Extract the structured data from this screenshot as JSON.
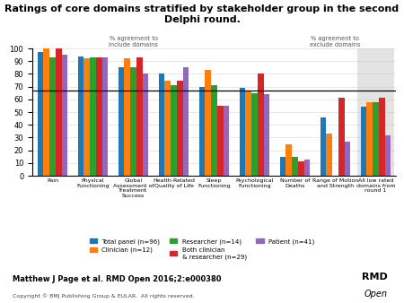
{
  "chart_data": {
    "type": "bar",
    "title": "Ratings of core domains stratified by stakeholder group in the second Delphi round.",
    "categories": [
      "Pain",
      "Physical\nFunctioning",
      "Global\nAssessment of\nTreatment\nSuccess",
      "Health-Related\nQuality of Life",
      "Sleep\nFunctioning",
      "Psychological\nFunctioning",
      "Number of\nDeaths",
      "Range of Motion\nand Strength",
      "All low rated\ndomains from\nround 1"
    ],
    "series": [
      {
        "name": "Total panel (n=96)",
        "values": [
          97,
          94,
          85,
          80,
          70,
          69,
          15,
          46,
          54
        ]
      },
      {
        "name": "Clinician (n=12)",
        "values": [
          100,
          92,
          92,
          75,
          83,
          67,
          25,
          33,
          58
        ]
      },
      {
        "name": "Researcher (n=14)",
        "values": [
          93,
          93,
          85,
          71,
          71,
          65,
          15,
          null,
          58
        ]
      },
      {
        "name": "Both clinician\n& researcher (n=29)",
        "values": [
          100,
          93,
          93,
          75,
          55,
          80,
          11,
          61,
          61
        ]
      },
      {
        "name": "Patient (n=41)",
        "values": [
          95,
          93,
          80,
          85,
          55,
          64,
          13,
          27,
          32
        ]
      }
    ],
    "ylim": [
      0,
      100
    ],
    "yticks": [
      0,
      10,
      20,
      30,
      40,
      50,
      60,
      70,
      80,
      90,
      100
    ],
    "grid": true,
    "legend": "lower center",
    "reference_line": 67,
    "shaded_category": "All low rated\ndomains from\nround 1",
    "annotations": [
      {
        "text": "% agreement to\ninclude domains",
        "x": 2
      },
      {
        "text": "% agreement to\nexclude domains",
        "x": 7
      },
      {
        "text": "Matthew J Page et al. RMD Open 2016;2:e000380"
      },
      {
        "text": "Copyright © BMJ Publishing Group & EULAR.  All rights reserved."
      },
      {
        "text": "RMD"
      },
      {
        "text": "Open"
      }
    ]
  }
}
